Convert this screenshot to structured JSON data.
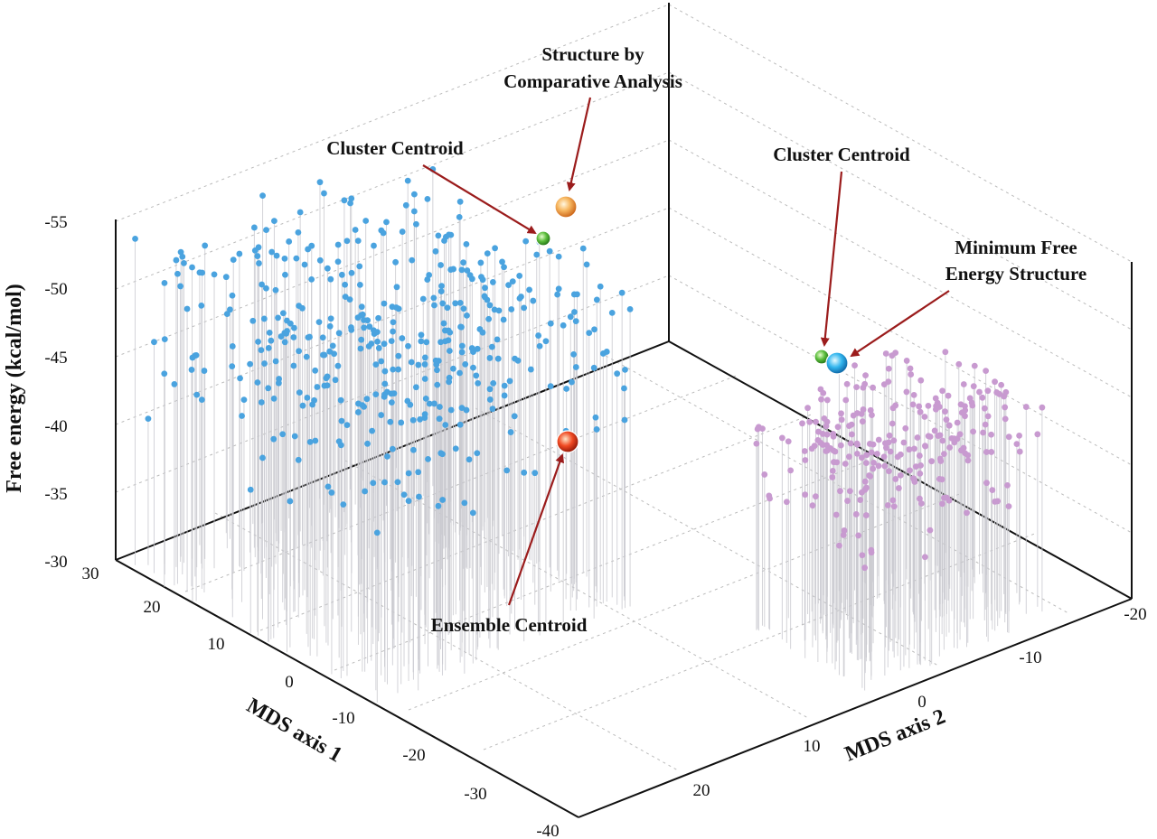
{
  "chart_data": {
    "type": "scatter",
    "zlabel": "Free energy (kcal/mol)",
    "xlabel": "MDS axis 1",
    "ylabel": "MDS axis 2",
    "z_ticks": [
      "-30",
      "-35",
      "-40",
      "-45",
      "-50",
      "-55"
    ],
    "x_ticks": [
      "30",
      "20",
      "10",
      "0",
      "-10",
      "-20",
      "-30",
      "-40"
    ],
    "y_ticks": [
      "20",
      "10",
      "0",
      "-10",
      "-20"
    ],
    "zlim": [
      -30,
      -57
    ],
    "xlim": [
      -40,
      30
    ],
    "ylim": [
      -20,
      28
    ],
    "grid": true,
    "colors": {
      "cluster1": "#4aa3df",
      "cluster2": "#c89ad0",
      "stem": "#c9c9cf",
      "cluster_centroid": "#3fa535",
      "structure_comparative": "#f5a742",
      "minimum_free_energy": "#1ea3e6",
      "ensemble_centroid": "#e8381f",
      "arrow": "#9b1c1c"
    },
    "series": [
      {
        "cluster": 1,
        "x_range": [
          -10,
          28
        ],
        "y_range": [
          5,
          28
        ],
        "z_range": [
          -40,
          -56
        ],
        "count": 420
      },
      {
        "cluster": 2,
        "x_range": [
          -38,
          -20
        ],
        "y_range": [
          -15,
          2
        ],
        "z_range": [
          -38,
          -48
        ],
        "count": 250
      }
    ],
    "highlights": [
      {
        "id": "structure_comparative",
        "x": 3,
        "y": 18,
        "z": -55
      },
      {
        "id": "cluster_centroid_1",
        "x": 5,
        "y": 15,
        "z": -53
      },
      {
        "id": "cluster_centroid_2",
        "x": -28,
        "y": -8,
        "z": -46
      },
      {
        "id": "minimum_free_energy",
        "x": -29,
        "y": -9,
        "z": -46
      },
      {
        "id": "ensemble_centroid",
        "x": -8,
        "y": 6,
        "z": -38
      }
    ],
    "annotations": {
      "structure_comparative": [
        "Structure by",
        "Comparative Analysis"
      ],
      "cluster_centroid_left": "Cluster Centroid",
      "cluster_centroid_right": "Cluster Centroid",
      "minimum_free_energy": [
        "Minimum Free",
        "Energy Structure"
      ],
      "ensemble_centroid": "Ensemble Centroid"
    }
  }
}
